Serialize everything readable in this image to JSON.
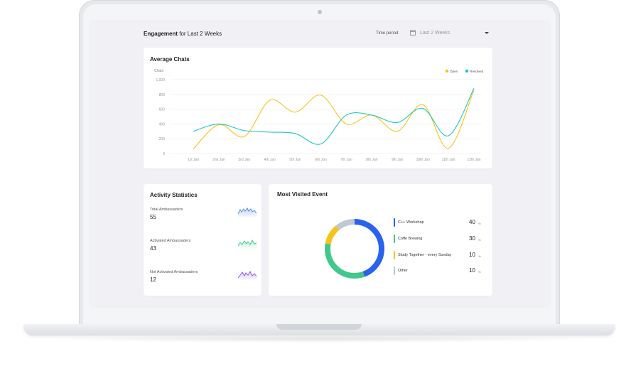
{
  "header": {
    "title_bold": "Engagement",
    "title_rest": " for Last 2 Weeks",
    "period_label": "Time period",
    "period_value": "Last 2 Weeks"
  },
  "colors": {
    "open": "#f5c518",
    "resolved": "#1fc7c2",
    "cpp": "#2962f0",
    "coffee": "#3fc98a",
    "study": "#f6c21c",
    "other": "#c2c8d2",
    "activity_total": "#5b8def",
    "activity_activated": "#3fcf8e",
    "activity_not": "#8a5cf6"
  },
  "average_chats": {
    "title": "Average Chats"
  },
  "chart_data": {
    "type": "line",
    "title": "Average Chats",
    "ylabel": "Chats",
    "xlabel": "",
    "categories": [
      "1st Jan",
      "2nd Jan",
      "3rd Jan",
      "4th Jan",
      "5th Jan",
      "6th Jan",
      "7th Jan",
      "8th Jan",
      "9th Jan",
      "10th Jan",
      "11th Jan",
      "12th Jan"
    ],
    "yticks": [
      "0",
      "200",
      "400",
      "600",
      "800",
      "1,000"
    ],
    "ylim": [
      0,
      1000
    ],
    "legend": "top-right",
    "series": [
      {
        "name": "Open",
        "color_key": "open",
        "values": [
          60,
          390,
          230,
          720,
          560,
          790,
          400,
          520,
          300,
          660,
          70,
          860
        ]
      },
      {
        "name": "Resolved",
        "color_key": "resolved",
        "values": [
          300,
          400,
          310,
          290,
          270,
          130,
          520,
          520,
          420,
          610,
          240,
          880
        ]
      }
    ]
  },
  "activity": {
    "title": "Activity Statistics",
    "items": [
      {
        "label": "Total Ambassaders",
        "value": "55"
      },
      {
        "label": "Activated Ambassaders",
        "value": "43"
      },
      {
        "label": "Not Activated Ambassaders",
        "value": "12"
      }
    ]
  },
  "events": {
    "title": "Most Visited Event",
    "unit": "%",
    "items": [
      {
        "label": "C++ Workshop",
        "value": 40,
        "value_text": "40"
      },
      {
        "label": "Coffe Brewing",
        "value": 30,
        "value_text": "30"
      },
      {
        "label": "Study Together - every Sunday",
        "value": 10,
        "value_text": "10"
      },
      {
        "label": "Other",
        "value": 10,
        "value_text": "10"
      }
    ]
  }
}
